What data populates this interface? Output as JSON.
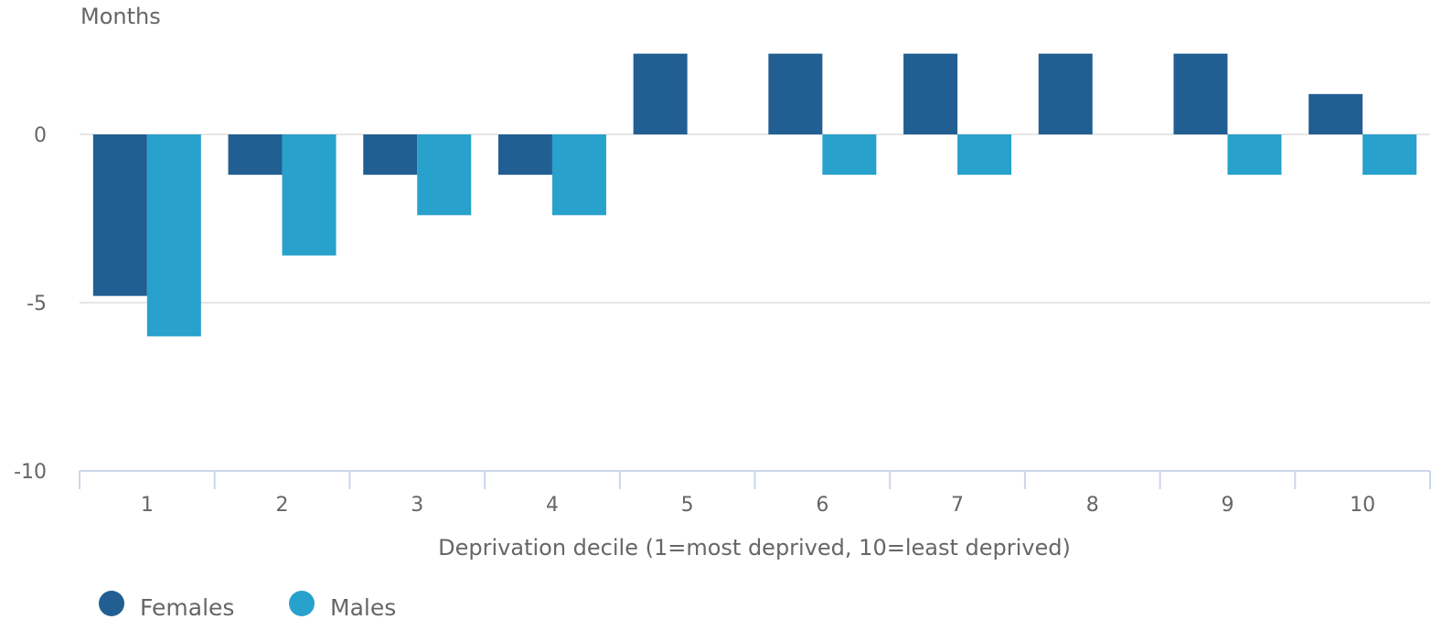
{
  "chart_data": {
    "type": "bar",
    "y_unit_label": "Months",
    "xlabel": "Deprivation decile (1=most deprived, 10=least deprived)",
    "categories": [
      "1",
      "2",
      "3",
      "4",
      "5",
      "6",
      "7",
      "8",
      "9",
      "10"
    ],
    "series": [
      {
        "name": "Females",
        "color": "#215f93",
        "values": [
          -4.8,
          -1.2,
          -1.2,
          -1.2,
          2.4,
          2.4,
          2.4,
          2.4,
          2.4,
          1.2
        ]
      },
      {
        "name": "Males",
        "color": "#28a1cc",
        "values": [
          -6.0,
          -3.6,
          -2.4,
          -2.4,
          0,
          -1.2,
          -1.2,
          0,
          -1.2,
          -1.2
        ]
      }
    ],
    "ylim": [
      -10,
      3.6
    ],
    "yticks": [
      0,
      -5,
      -10
    ],
    "ytick_labels": [
      "0",
      "-5",
      "-10"
    ],
    "grid": true,
    "legend_position": "bottom-left"
  }
}
